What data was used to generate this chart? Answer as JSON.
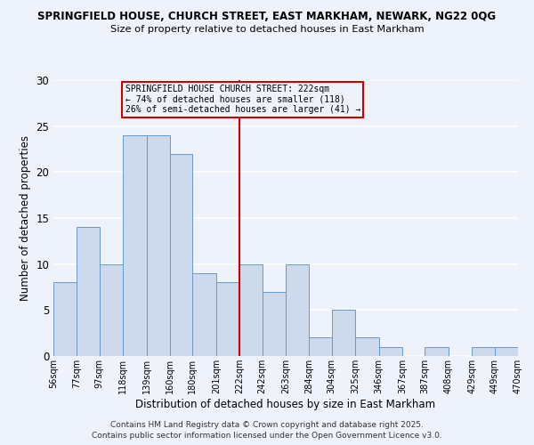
{
  "title_line1": "SPRINGFIELD HOUSE, CHURCH STREET, EAST MARKHAM, NEWARK, NG22 0QG",
  "title_line2": "Size of property relative to detached houses in East Markham",
  "xlabel": "Distribution of detached houses by size in East Markham",
  "ylabel": "Number of detached properties",
  "bin_labels": [
    "56sqm",
    "77sqm",
    "97sqm",
    "118sqm",
    "139sqm",
    "160sqm",
    "180sqm",
    "201sqm",
    "222sqm",
    "242sqm",
    "263sqm",
    "284sqm",
    "304sqm",
    "325sqm",
    "346sqm",
    "367sqm",
    "387sqm",
    "408sqm",
    "429sqm",
    "449sqm",
    "470sqm"
  ],
  "bin_edges": [
    56,
    77,
    97,
    118,
    139,
    160,
    180,
    201,
    222,
    242,
    263,
    284,
    304,
    325,
    346,
    367,
    387,
    408,
    429,
    449,
    470
  ],
  "counts": [
    8,
    14,
    10,
    24,
    24,
    22,
    9,
    8,
    10,
    7,
    10,
    2,
    5,
    2,
    1,
    0,
    1,
    0,
    1,
    1
  ],
  "bar_color": "#ccdaeb",
  "bar_edge_color": "#6699cc",
  "ref_line_x": 222,
  "ref_line_color": "#cc0000",
  "annotation_box_text": "SPRINGFIELD HOUSE CHURCH STREET: 222sqm\n← 74% of detached houses are smaller (118)\n26% of semi-detached houses are larger (41) →",
  "annotation_box_color": "#cc0000",
  "ylim": [
    0,
    30
  ],
  "yticks": [
    0,
    5,
    10,
    15,
    20,
    25,
    30
  ],
  "footer_line1": "Contains HM Land Registry data © Crown copyright and database right 2025.",
  "footer_line2": "Contains public sector information licensed under the Open Government Licence v3.0.",
  "background_color": "#eef2fb",
  "grid_color": "#ffffff"
}
